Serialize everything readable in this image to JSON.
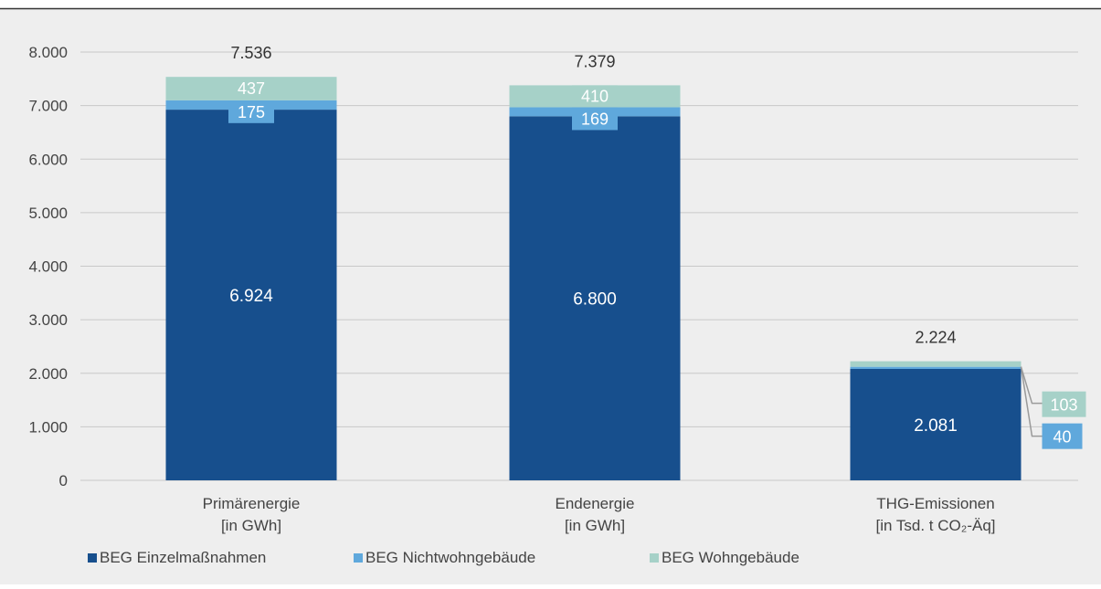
{
  "colors": {
    "background": "#eeeeee",
    "top_rule": "#333333",
    "grid": "#c8c8c8",
    "axis_text": "#444444",
    "total_label": "#333333",
    "data_label_light": "#ffffff",
    "leader_line": "#9a9a9a"
  },
  "chart_data": {
    "type": "bar",
    "stacked": true,
    "title": "",
    "xlabel": "",
    "ylabel": "",
    "ylim": [
      0,
      8000
    ],
    "grid": true,
    "legend_position": "bottom-left",
    "y_ticks": [
      {
        "value": 0,
        "label": "0"
      },
      {
        "value": 1000,
        "label": "1.000"
      },
      {
        "value": 2000,
        "label": "2.000"
      },
      {
        "value": 3000,
        "label": "3.000"
      },
      {
        "value": 4000,
        "label": "4.000"
      },
      {
        "value": 5000,
        "label": "5.000"
      },
      {
        "value": 6000,
        "label": "6.000"
      },
      {
        "value": 7000,
        "label": "7.000"
      },
      {
        "value": 8000,
        "label": "8.000"
      }
    ],
    "categories": [
      {
        "line1": "Primärenergie",
        "line2": "[in GWh]"
      },
      {
        "line1": "Endenergie",
        "line2": "[in GWh]"
      },
      {
        "line1": "THG-Emissionen",
        "line2": "[in Tsd. t CO₂-Äq]"
      }
    ],
    "series": [
      {
        "name": "BEG Einzelmaßnahmen",
        "color": "#174f8d",
        "values": [
          6924,
          6800,
          2081
        ],
        "labels": [
          "6.924",
          "6.800",
          "2.081"
        ]
      },
      {
        "name": "BEG Nichtwohngebäude",
        "color": "#5fa8dc",
        "values": [
          175,
          169,
          40
        ],
        "labels": [
          "175",
          "169",
          "40"
        ]
      },
      {
        "name": "BEG Wohngebäude",
        "color": "#a6d1c8",
        "values": [
          437,
          410,
          103
        ],
        "labels": [
          "437",
          "410",
          "103"
        ]
      }
    ],
    "totals": {
      "values": [
        7536,
        7379,
        2224
      ],
      "labels": [
        "7.536",
        "7.379",
        "2.224"
      ]
    }
  }
}
